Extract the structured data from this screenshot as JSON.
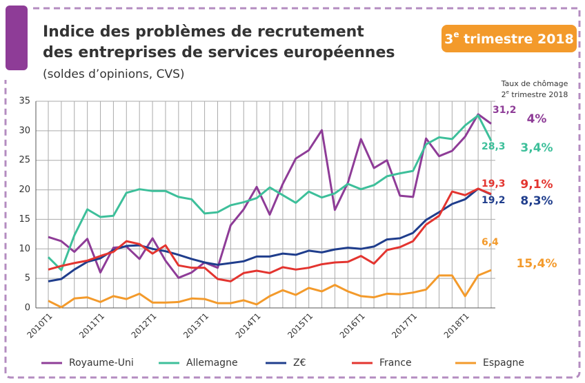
{
  "chart_data": {
    "type": "line",
    "title_lines": [
      "Indice des problèmes de recrutement",
      "des entreprises de services européennes"
    ],
    "subtitle": "(soldes d’opinions, CVS)",
    "badge": {
      "number": "3",
      "sup": "e",
      "rest": " trimestre 2018"
    },
    "side_title": {
      "line1": "Taux de chômage",
      "number": "2",
      "sup": "e",
      "rest": " trimestre 2018"
    },
    "categories": [
      "2010T1",
      null,
      null,
      null,
      "2011T1",
      null,
      null,
      null,
      "2012T1",
      null,
      null,
      null,
      "2013T1",
      null,
      null,
      null,
      "2014T1",
      null,
      null,
      null,
      "2015T1",
      null,
      null,
      null,
      "2016T1",
      null,
      null,
      null,
      "2017T1",
      null,
      null,
      null,
      "2018T1",
      null,
      null
    ],
    "ylim": [
      0,
      35
    ],
    "yticks": [
      0,
      5,
      10,
      15,
      20,
      25,
      30,
      35
    ],
    "grid": true,
    "legend": "bottom",
    "series": [
      {
        "name": "Royaume-Uni",
        "color": "#8e3c97",
        "values": [
          12,
          11.3,
          9.5,
          11.7,
          6,
          10.2,
          10.4,
          8.3,
          11.8,
          8,
          5.1,
          6,
          7.7,
          6.8,
          14,
          16.7,
          20.5,
          15.8,
          21,
          25.3,
          26.7,
          30.1,
          16.6,
          21.2,
          28.6,
          23.7,
          25,
          19,
          18.8,
          28.7,
          25.7,
          26.6,
          29,
          32.8,
          31.2
        ],
        "value_labels": [
          null,
          null,
          null,
          null,
          null,
          null,
          null,
          null,
          null,
          null,
          null,
          null,
          null,
          null,
          null,
          null,
          null,
          null,
          null,
          null,
          null,
          null,
          null,
          null,
          null,
          null,
          null,
          null,
          null,
          null,
          null,
          null,
          null,
          null,
          "31,2"
        ],
        "unemployment": "4%"
      },
      {
        "name": "Allemagne",
        "color": "#3dbf9a",
        "values": [
          8.6,
          6.4,
          12.3,
          16.7,
          15.4,
          15.6,
          19.5,
          20.1,
          19.8,
          19.8,
          18.8,
          18.4,
          16,
          16.2,
          17.4,
          17.9,
          18.6,
          20.4,
          19.1,
          17.8,
          19.7,
          18.7,
          19.4,
          21,
          20.1,
          20.8,
          22.3,
          22.8,
          23.2,
          27.7,
          28.9,
          28.6,
          30.9,
          32.6,
          28.3
        ],
        "value_labels": [
          null,
          null,
          null,
          null,
          null,
          null,
          null,
          null,
          null,
          null,
          null,
          null,
          null,
          null,
          null,
          null,
          null,
          null,
          null,
          null,
          null,
          null,
          null,
          null,
          null,
          null,
          null,
          null,
          null,
          null,
          null,
          null,
          null,
          null,
          "28,3"
        ],
        "unemployment": "3,4%"
      },
      {
        "name": "Z€",
        "color": "#1f3d8c",
        "values": [
          4.5,
          4.9,
          6.5,
          7.8,
          8.4,
          9.8,
          10.5,
          10.6,
          10,
          9.6,
          9,
          8.3,
          7.7,
          7.3,
          7.6,
          7.9,
          8.7,
          8.7,
          9.2,
          9,
          9.7,
          9.4,
          9.9,
          10.2,
          10,
          10.4,
          11.6,
          11.8,
          12.7,
          14.9,
          16.2,
          17.6,
          18.4,
          20.2,
          19.2
        ],
        "value_labels": [
          null,
          null,
          null,
          null,
          null,
          null,
          null,
          null,
          null,
          null,
          null,
          null,
          null,
          null,
          null,
          null,
          null,
          null,
          null,
          null,
          null,
          null,
          null,
          null,
          null,
          null,
          null,
          null,
          null,
          null,
          null,
          null,
          null,
          null,
          "19,2"
        ],
        "unemployment": "8,3%"
      },
      {
        "name": "France",
        "color": "#e3342f",
        "values": [
          6.5,
          7.1,
          7.6,
          8,
          8.8,
          9.5,
          11.3,
          10.8,
          9.2,
          10.6,
          7.2,
          6.8,
          6.8,
          4.9,
          4.5,
          5.9,
          6.3,
          5.9,
          6.9,
          6.5,
          6.8,
          7.4,
          7.7,
          7.8,
          8.8,
          7.5,
          9.8,
          10.3,
          11.3,
          14.1,
          15.6,
          19.7,
          19.1,
          20.2,
          19.3
        ],
        "value_labels": [
          null,
          null,
          null,
          null,
          null,
          null,
          null,
          null,
          null,
          null,
          null,
          null,
          null,
          null,
          null,
          null,
          null,
          null,
          null,
          null,
          null,
          null,
          null,
          null,
          null,
          null,
          null,
          null,
          null,
          null,
          null,
          null,
          null,
          null,
          "19,3"
        ],
        "unemployment": "9,1%"
      },
      {
        "name": "Espagne",
        "color": "#f39a2b",
        "values": [
          1.2,
          0.1,
          1.6,
          1.8,
          1,
          2,
          1.5,
          2.4,
          0.9,
          0.9,
          1,
          1.6,
          1.5,
          0.8,
          0.8,
          1.3,
          0.6,
          2,
          3,
          2.2,
          3.4,
          2.8,
          3.9,
          2.8,
          2,
          1.8,
          2.4,
          2.3,
          2.6,
          3.1,
          5.5,
          5.5,
          2,
          5.5,
          6.4
        ],
        "value_labels": [
          null,
          null,
          null,
          null,
          null,
          null,
          null,
          null,
          null,
          null,
          null,
          null,
          null,
          null,
          null,
          null,
          null,
          null,
          null,
          null,
          null,
          null,
          null,
          null,
          null,
          null,
          null,
          null,
          null,
          null,
          null,
          null,
          null,
          null,
          "6,4"
        ],
        "unemployment": "15,4%"
      }
    ]
  }
}
